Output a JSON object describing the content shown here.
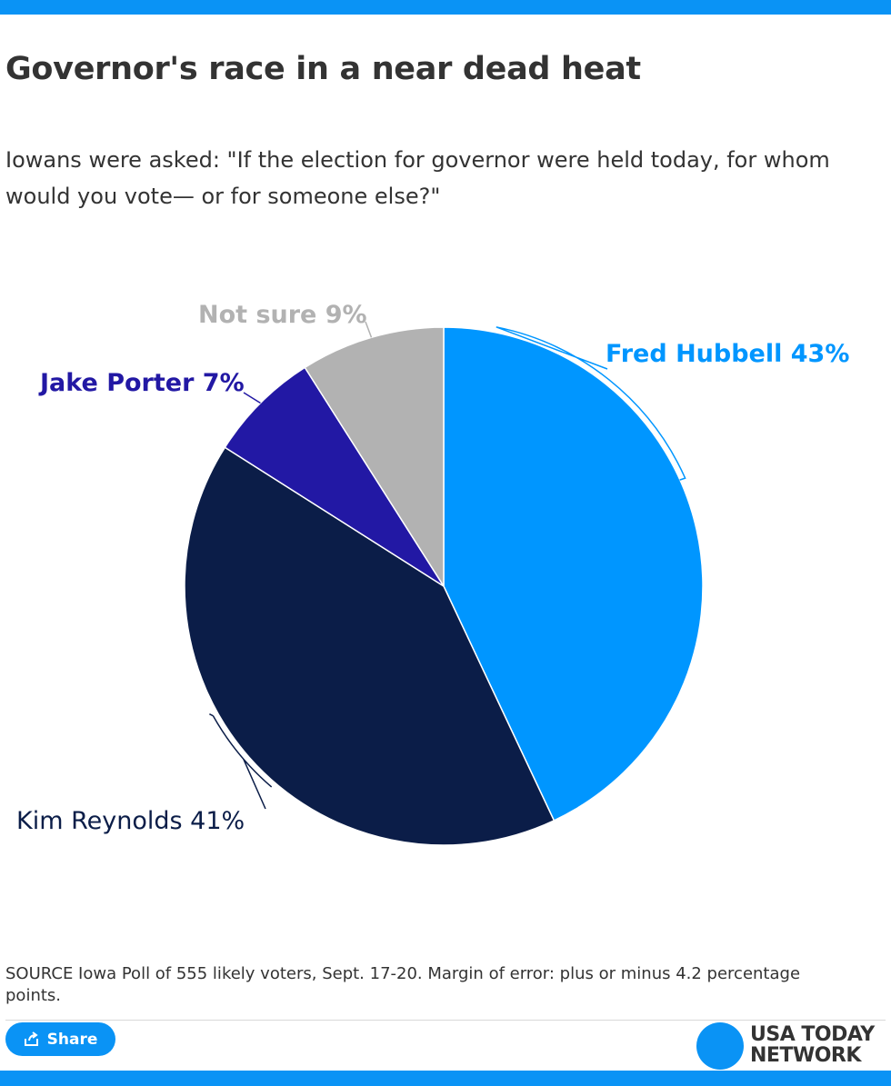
{
  "title": "Governor's race in a near dead heat",
  "subtitle": "Iowans were asked: \"If the election for governor were held today, for whom would you vote— or for someone else?\"",
  "chart_data": {
    "type": "pie",
    "slices": [
      {
        "label": "Fred Hubbell 43%",
        "value": 43,
        "color": "#0096ff"
      },
      {
        "label": "Kim Reynolds 41%",
        "value": 41,
        "color": "#0b1d48"
      },
      {
        "label": "Jake Porter 7%",
        "value": 7,
        "color": "#2218a4"
      },
      {
        "label": "Not sure 9%",
        "value": 9,
        "color": "#b2b2b2"
      }
    ]
  },
  "source": "SOURCE Iowa Poll of 555 likely voters, Sept. 17-20. Margin of error: plus or minus 4.2 percentage points.",
  "share": {
    "label": "Share",
    "icon": "share-icon"
  },
  "logo": {
    "line1": "USA TODAY",
    "line2": "NETWORK"
  }
}
